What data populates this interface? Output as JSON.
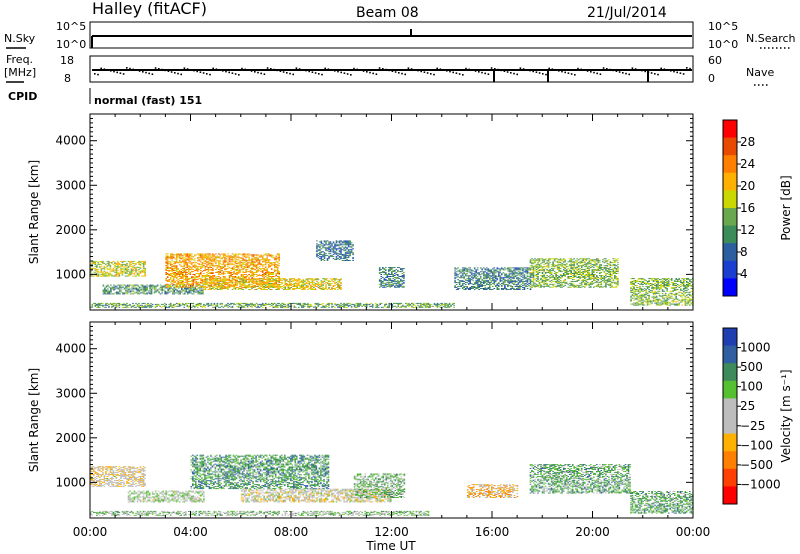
{
  "header": {
    "station": "Halley (fitACF)",
    "beam": "Beam 08",
    "date": "21/Jul/2014"
  },
  "top_panels": {
    "nsky_label": "N.Sky",
    "nsearch_label": "N.Search",
    "freq_label_1": "Freq.",
    "freq_label_2": "[MHz]",
    "nave_label": "Nave",
    "cpid_label": "CPID",
    "cpid_value": "normal (fast) 151",
    "nsky_ticks": [
      "10^5",
      "10^0"
    ],
    "nsearch_ticks": [
      "10^5",
      "10^0"
    ],
    "freq_ticks": [
      "18",
      "8"
    ],
    "nave_ticks": [
      "60",
      "0"
    ]
  },
  "chart_data": [
    {
      "type": "heatmap",
      "title": "",
      "xlabel": "Time UT",
      "ylabel": "Slant Range [km]",
      "x_ticks": [
        "00:00",
        "04:00",
        "08:00",
        "12:00",
        "16:00",
        "20:00",
        "00:00"
      ],
      "y_ticks": [
        "1000",
        "2000",
        "3000",
        "4000"
      ],
      "xlim_hours": [
        0,
        24
      ],
      "ylim_km": [
        200,
        4600
      ],
      "colorbar": {
        "label": "Power [dB]",
        "ticks": [
          "28",
          "24",
          "20",
          "16",
          "12",
          "8",
          "4"
        ],
        "colors": [
          "#ff0000",
          "#e84a00",
          "#ff8000",
          "#ffb000",
          "#c8d800",
          "#6aa84f",
          "#3c8c5a",
          "#2b5fa0",
          "#1a3fd0",
          "#0000ff"
        ]
      },
      "regions": [
        {
          "t0": 0.0,
          "t1": 2.2,
          "r0": 950,
          "r1": 1300,
          "level": 0.55
        },
        {
          "t0": 0.5,
          "t1": 4.5,
          "r0": 550,
          "r1": 750,
          "level": 0.35
        },
        {
          "t0": 3.0,
          "t1": 7.5,
          "r0": 700,
          "r1": 1450,
          "level": 0.7
        },
        {
          "t0": 4.5,
          "t1": 10.0,
          "r0": 650,
          "r1": 900,
          "level": 0.6
        },
        {
          "t0": 0.0,
          "t1": 14.5,
          "r0": 250,
          "r1": 350,
          "level": 0.4
        },
        {
          "t0": 9.0,
          "t1": 10.5,
          "r0": 1300,
          "r1": 1750,
          "level": 0.25
        },
        {
          "t0": 11.5,
          "t1": 12.5,
          "r0": 700,
          "r1": 1150,
          "level": 0.3
        },
        {
          "t0": 14.5,
          "t1": 17.5,
          "r0": 650,
          "r1": 1150,
          "level": 0.3
        },
        {
          "t0": 17.5,
          "t1": 21.0,
          "r0": 700,
          "r1": 1350,
          "level": 0.45
        },
        {
          "t0": 21.5,
          "t1": 24.0,
          "r0": 300,
          "r1": 900,
          "level": 0.45
        }
      ]
    },
    {
      "type": "heatmap",
      "title": "",
      "xlabel": "Time UT",
      "ylabel": "Slant Range [km]",
      "x_ticks": [
        "00:00",
        "04:00",
        "08:00",
        "12:00",
        "16:00",
        "20:00",
        "00:00"
      ],
      "y_ticks": [
        "1000",
        "2000",
        "3000",
        "4000"
      ],
      "xlim_hours": [
        0,
        24
      ],
      "ylim_km": [
        200,
        4600
      ],
      "colorbar": {
        "label": "Velocity [m s⁻¹]",
        "ticks": [
          "1000",
          "500",
          "100",
          "25",
          "−25",
          "−100",
          "−500",
          "−1000"
        ],
        "colors": [
          "#1f3fb0",
          "#2f5fa0",
          "#3d8a5a",
          "#55c030",
          "#bdbdbd",
          "#bdbdbd",
          "#ffb000",
          "#ff8000",
          "#ff4000",
          "#ff0000"
        ]
      },
      "regions": [
        {
          "t0": 0.0,
          "t1": 2.2,
          "r0": 900,
          "r1": 1350,
          "level": 0.45
        },
        {
          "t0": 1.5,
          "t1": 4.5,
          "r0": 550,
          "r1": 800,
          "level": 0.55
        },
        {
          "t0": 4.0,
          "t1": 9.5,
          "r0": 850,
          "r1": 1600,
          "level": 0.75
        },
        {
          "t0": 6.0,
          "t1": 12.0,
          "r0": 550,
          "r1": 850,
          "level": 0.48
        },
        {
          "t0": 0.0,
          "t1": 13.5,
          "r0": 250,
          "r1": 350,
          "level": 0.6
        },
        {
          "t0": 10.5,
          "t1": 12.5,
          "r0": 650,
          "r1": 1200,
          "level": 0.65
        },
        {
          "t0": 15.0,
          "t1": 17.0,
          "r0": 650,
          "r1": 950,
          "level": 0.35
        },
        {
          "t0": 17.5,
          "t1": 21.5,
          "r0": 750,
          "r1": 1400,
          "level": 0.7
        },
        {
          "t0": 21.5,
          "t1": 24.0,
          "r0": 300,
          "r1": 800,
          "level": 0.7
        }
      ]
    }
  ]
}
